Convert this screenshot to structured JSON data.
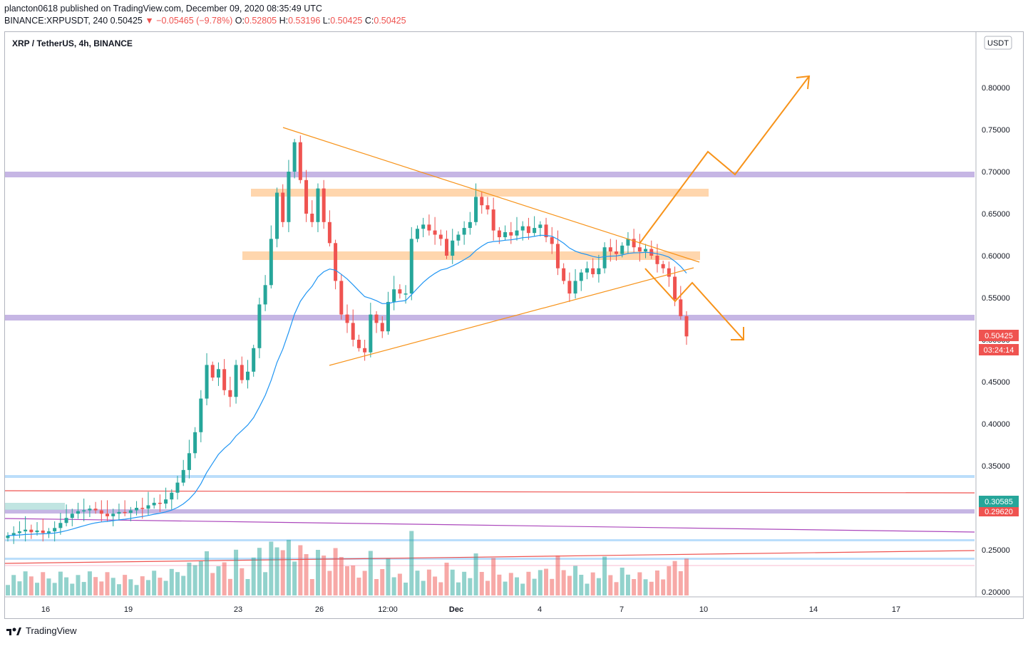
{
  "header": {
    "line1": "plancton0618 published on TradingView.com, December 09, 2020 08:35:49 UTC",
    "symbol": "BINANCE:XRPUSDT, 240",
    "last": "0.50425",
    "change_arrow": "▼",
    "change": "−0.05465 (−9.78%)",
    "o_label": "O:",
    "o": "0.52805",
    "h_label": "H:",
    "h": "0.53196",
    "l_label": "L:",
    "l": "0.50425",
    "c_label": "C:",
    "c": "0.50425"
  },
  "chart_title": "XRP / TetherUS, 4h, BINANCE",
  "currency_badge": "USDT",
  "price_badge": "0.50425",
  "countdown_badge": "03:24:14",
  "level_badge_1": "0.30585",
  "level_badge_2": "0.29620",
  "footer": {
    "brand": "TradingView"
  },
  "colors": {
    "up": "#26a69a",
    "down": "#ef5350",
    "ema": "#2196f3",
    "pattern": "#f7931a",
    "zone_purple": "#b39ddb",
    "zone_orange": "#ffcc99",
    "zone_blue": "#bbdefb"
  },
  "chart_data": {
    "type": "candlestick",
    "y_axis": {
      "min": 0.2,
      "max": 0.8,
      "ticks": [
        "0.80000",
        "0.75000",
        "0.70000",
        "0.65000",
        "0.60000",
        "0.55000",
        "0.50000",
        "0.45000",
        "0.40000",
        "0.35000",
        "0.30000",
        "0.25000",
        "0.20000"
      ]
    },
    "x_axis": {
      "ticks": [
        "16",
        "19",
        "23",
        "26",
        "12:00",
        "Dec",
        "4",
        "7",
        "10",
        "14",
        "17"
      ]
    },
    "candles_close": [
      0.267,
      0.27,
      0.272,
      0.274,
      0.271,
      0.273,
      0.27,
      0.272,
      0.276,
      0.282,
      0.288,
      0.293,
      0.296,
      0.297,
      0.299,
      0.297,
      0.293,
      0.29,
      0.293,
      0.295,
      0.294,
      0.297,
      0.3,
      0.299,
      0.303,
      0.306,
      0.305,
      0.31,
      0.318,
      0.33,
      0.345,
      0.365,
      0.39,
      0.43,
      0.47,
      0.455,
      0.465,
      0.44,
      0.432,
      0.47,
      0.452,
      0.462,
      0.49,
      0.542,
      0.565,
      0.62,
      0.675,
      0.64,
      0.7,
      0.735,
      0.69,
      0.65,
      0.64,
      0.68,
      0.64,
      0.615,
      0.57,
      0.53,
      0.52,
      0.5,
      0.49,
      0.485,
      0.53,
      0.52,
      0.51,
      0.545,
      0.56,
      0.555,
      0.555,
      0.62,
      0.632,
      0.637,
      0.63,
      0.625,
      0.62,
      0.6,
      0.618,
      0.625,
      0.633,
      0.64,
      0.67,
      0.66,
      0.655,
      0.63,
      0.622,
      0.628,
      0.624,
      0.63,
      0.635,
      0.627,
      0.633,
      0.637,
      0.622,
      0.614,
      0.585,
      0.57,
      0.555,
      0.57,
      0.58,
      0.585,
      0.578,
      0.585,
      0.61,
      0.605,
      0.602,
      0.612,
      0.62,
      0.61,
      0.605,
      0.608,
      0.6,
      0.59,
      0.585,
      0.575,
      0.548,
      0.528,
      0.504
    ],
    "ema_label": "EMA",
    "volume_note": "volume histogram bars"
  },
  "annotations": {
    "resistance_upper": 0.697,
    "resistance_lower": 0.525,
    "supply_zone": [
      0.665,
      0.678
    ],
    "mid_zone": [
      0.594,
      0.603
    ],
    "blue_level_1": 0.336,
    "blue_level_2": 0.258,
    "blue_level_3": 0.235,
    "purple_level": 0.296,
    "red_level": 0.318
  }
}
